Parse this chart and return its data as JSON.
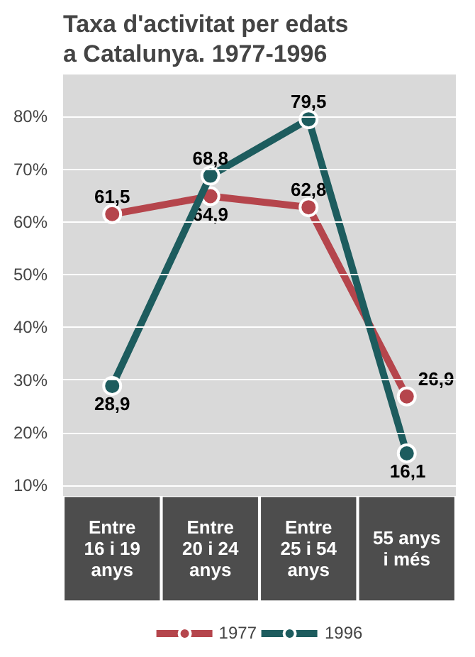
{
  "chart_data": {
    "type": "line",
    "title": "Taxa d'activitat per edats\na Catalunya. 1977-1996",
    "categories": [
      "Entre\n16 i 19\nanys",
      "Entre\n20 i 24\nanys",
      "Entre\n25 i 54\nanys",
      "55 anys\ni més"
    ],
    "series": [
      {
        "name": "1977",
        "color": "#b5454c",
        "values": [
          61.5,
          64.9,
          62.8,
          26.9
        ],
        "value_labels": [
          "61,5",
          "64,9",
          "62,8",
          "26,9"
        ]
      },
      {
        "name": "1996",
        "color": "#1d5c5e",
        "values": [
          28.9,
          68.8,
          79.5,
          16.1
        ],
        "value_labels": [
          "28,9",
          "68,8",
          "79,5",
          "16,1"
        ]
      }
    ],
    "ylim": [
      8,
      88
    ],
    "yticks": [
      {
        "value": 10,
        "label": "10%"
      },
      {
        "value": 20,
        "label": "20%"
      },
      {
        "value": 30,
        "label": "30%"
      },
      {
        "value": 40,
        "label": "40%"
      },
      {
        "value": 50,
        "label": "50%"
      },
      {
        "value": 60,
        "label": "60%"
      },
      {
        "value": 70,
        "label": "70%"
      },
      {
        "value": 80,
        "label": "80%"
      }
    ],
    "grid": "y",
    "legend": "bottom",
    "marker": "circle",
    "line_style": "solid"
  }
}
